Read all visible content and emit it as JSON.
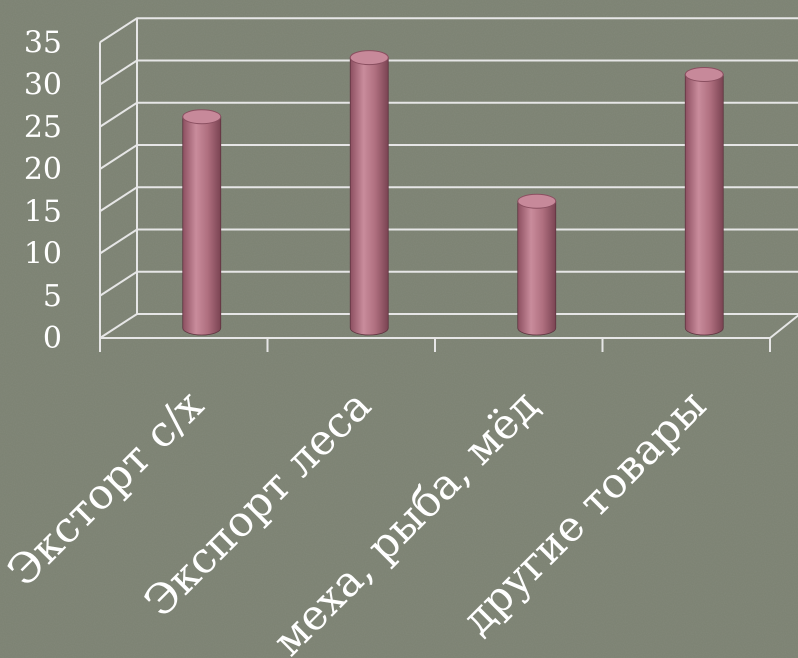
{
  "chart_data": {
    "type": "bar",
    "title": "",
    "xlabel": "",
    "ylabel": "",
    "categories": [
      "Эксторт с/х",
      "Экспорт леса",
      "меха, рыба, мёд",
      "другие товары"
    ],
    "values": [
      25,
      32,
      15,
      30
    ],
    "ylim": [
      0,
      35
    ],
    "yticks": [
      0,
      5,
      10,
      15,
      20,
      25,
      30,
      35
    ],
    "grid": true,
    "legend": "none",
    "colors": {
      "background": "#7b8171",
      "bar": "#b07080",
      "gridline": "#e6e6e6",
      "text": "#ffffff"
    }
  }
}
